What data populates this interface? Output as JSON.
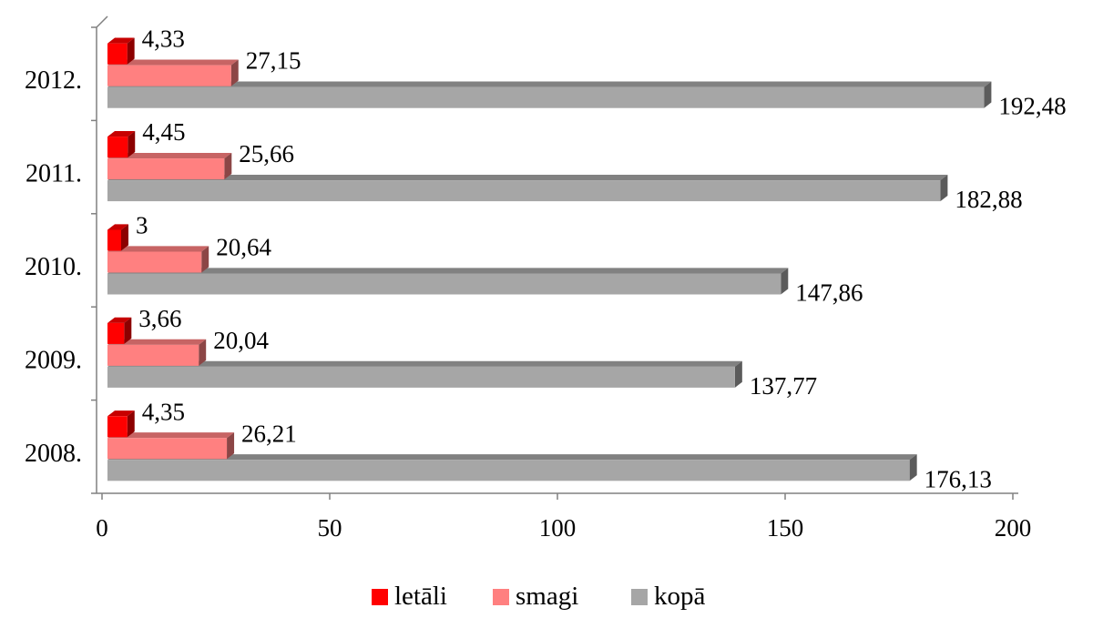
{
  "chart_data": {
    "type": "bar",
    "orientation": "horizontal",
    "style": "3d",
    "categories": [
      "2008.",
      "2009.",
      "2010.",
      "2011.",
      "2012."
    ],
    "series": [
      {
        "name": "letāli",
        "color": "#ff0000",
        "values": [
          4.35,
          3.66,
          3,
          4.45,
          4.33
        ],
        "labels": [
          "4,35",
          "3,66",
          "3",
          "4,45",
          "4,33"
        ]
      },
      {
        "name": "smagi",
        "color": "#ff8080",
        "values": [
          26.21,
          20.04,
          20.64,
          25.66,
          27.15
        ],
        "labels": [
          "26,21",
          "20,04",
          "20,64",
          "25,66",
          "27,15"
        ]
      },
      {
        "name": "kopā",
        "color": "#a6a6a6",
        "values": [
          176.13,
          137.77,
          147.86,
          182.88,
          192.48
        ],
        "labels": [
          "176,13",
          "137,77",
          "147,86",
          "182,88",
          "192,48"
        ]
      }
    ],
    "x_ticks": [
      "0",
      "50",
      "100",
      "150",
      "200"
    ],
    "xlim": [
      0,
      200
    ],
    "title": "",
    "xlabel": "",
    "ylabel": "",
    "grid": false,
    "legend_position": "bottom"
  }
}
